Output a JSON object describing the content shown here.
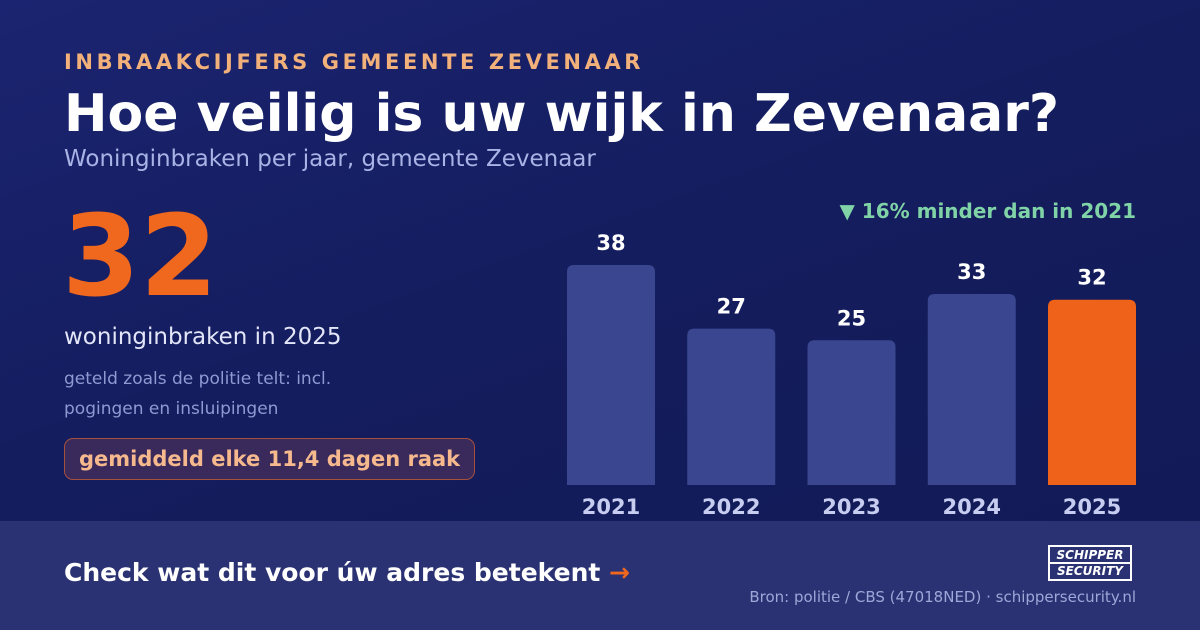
{
  "header": {
    "kicker": "INBRAAKCIJFERS GEMEENTE ZEVENAAR",
    "title": "Hoe veilig is uw wijk in Zevenaar?",
    "subtitle": "Woninginbraken per jaar, gemeente Zevenaar"
  },
  "stat": {
    "value": "32",
    "label": "woninginbraken in 2025",
    "note": "geteld zoals de politie telt: incl. pogingen en insluipingen",
    "frequency": "gemiddeld elke 11,4 dagen raak"
  },
  "chart_data": {
    "type": "bar",
    "categories": [
      "2021",
      "2022",
      "2023",
      "2024",
      "2025"
    ],
    "values": [
      38,
      27,
      25,
      33,
      32
    ],
    "highlight_index": 4,
    "annotation": "▼ 16% minder dan in 2021",
    "ylim": [
      0,
      38
    ],
    "grid": false,
    "colors": {
      "bar": "#3a4690",
      "highlight": "#ee6319",
      "annotation": "#7fd3a6",
      "label": "#ffffff",
      "tick": "#c7cdf0"
    }
  },
  "footer": {
    "cta": "Check wat dit voor úw adres betekent",
    "cta_arrow": "→",
    "source": "Bron: politie / CBS (47018NED) · schippersecurity.nl",
    "logo_top": "SCHIPPER",
    "logo_bottom": "SECURITY"
  }
}
